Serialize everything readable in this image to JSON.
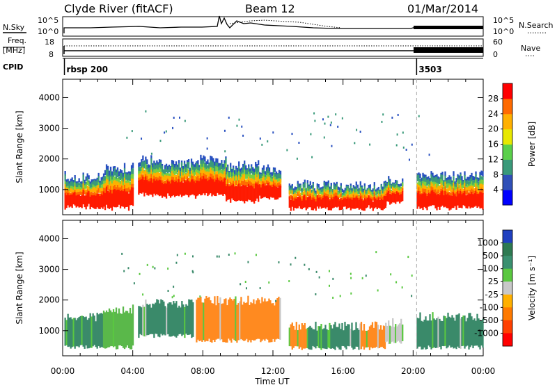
{
  "header": {
    "station": "Clyde River (fitACF)",
    "beam": "Beam 12",
    "date": "01/Mar/2014"
  },
  "top_strips": {
    "nsky": {
      "label": "N.Sky",
      "ticks_left": [
        "10^5",
        "10^0"
      ],
      "ticks_right": [
        "10^5",
        "10^0"
      ],
      "right_label": "N.Search",
      "right_dots": "........"
    },
    "freq": {
      "label_line1": "Freq.",
      "label_line2": "[MHz]",
      "ticks_left": [
        "18",
        "8"
      ],
      "ticks_right": [
        "60",
        "0"
      ],
      "right_label": "Nave",
      "right_dots": "...."
    },
    "cpid": {
      "label": "CPID",
      "segments": [
        {
          "start_hour": 0.1,
          "name": "rbsp 200"
        },
        {
          "start_hour": 20.2,
          "name": "3503"
        }
      ]
    }
  },
  "time_axis": {
    "title": "Time UT",
    "ticks": [
      "00:00",
      "04:00",
      "08:00",
      "12:00",
      "16:00",
      "20:00",
      "00:00"
    ]
  },
  "chart_data": [
    {
      "type": "heatmap",
      "name": "power",
      "xlabel": "",
      "ylabel": "Slant Range [km]",
      "x_range_hours": [
        0,
        24
      ],
      "ylim": [
        180,
        4600
      ],
      "yticks": [
        "1000",
        "2000",
        "3000",
        "4000"
      ],
      "colorbar_label": "Power [dB]",
      "colorbar_ticks": [
        "4",
        "8",
        "12",
        "16",
        "20",
        "24",
        "28"
      ],
      "colorbar_colors": [
        "#0000ff",
        "#3050b8",
        "#3a9a7a",
        "#5ad04a",
        "#e8e800",
        "#ffb000",
        "#ff6a00",
        "#ff0000"
      ],
      "segments": [
        {
          "t0": 0.1,
          "t1": 2.3,
          "r0": 500,
          "r1": 1430
        },
        {
          "t0": 2.3,
          "t1": 4.0,
          "r0": 480,
          "r1": 1700
        },
        {
          "t0": 4.3,
          "t1": 5.4,
          "r0": 900,
          "r1": 1950
        },
        {
          "t0": 5.4,
          "t1": 7.6,
          "r0": 860,
          "r1": 1850
        },
        {
          "t0": 7.6,
          "t1": 9.3,
          "r0": 900,
          "r1": 1980
        },
        {
          "t0": 9.3,
          "t1": 11.2,
          "r0": 700,
          "r1": 1780
        },
        {
          "t0": 11.2,
          "t1": 12.4,
          "r0": 800,
          "r1": 1700
        },
        {
          "t0": 12.9,
          "t1": 18.4,
          "r0": 460,
          "r1": 1150
        },
        {
          "t0": 18.4,
          "t1": 19.4,
          "r0": 650,
          "r1": 1250
        },
        {
          "t0": 20.2,
          "t1": 24.0,
          "r0": 480,
          "r1": 1450
        }
      ]
    },
    {
      "type": "heatmap",
      "name": "velocity",
      "xlabel": "Time UT",
      "ylabel": "Slant Range [km]",
      "x_range_hours": [
        0,
        24
      ],
      "ylim": [
        180,
        4600
      ],
      "yticks": [
        "1000",
        "2000",
        "3000",
        "4000"
      ],
      "colorbar_label": "Velocity [m s⁻¹]",
      "colorbar_ticks": [
        "1000",
        "500",
        "100",
        "25",
        "-25",
        "-100",
        "-500",
        "-1000"
      ],
      "colorbar_colors": [
        "#2040c0",
        "#2e7a52",
        "#3a9070",
        "#5ac840",
        "#c8c8c8",
        "#ffb000",
        "#ff7a00",
        "#ff4000",
        "#ff0000"
      ],
      "segments": [
        {
          "t0": 0.1,
          "t1": 2.3,
          "r0": 500,
          "r1": 1430,
          "v": "#3a8a6a"
        },
        {
          "t0": 2.3,
          "t1": 4.0,
          "r0": 480,
          "r1": 1700,
          "v": "#5ab84a"
        },
        {
          "t0": 4.3,
          "t1": 7.4,
          "r0": 860,
          "r1": 1900,
          "v": "#3a8a6a"
        },
        {
          "t0": 7.6,
          "t1": 12.4,
          "r0": 700,
          "r1": 1980,
          "v": "#ff8a20"
        },
        {
          "t0": 12.9,
          "t1": 14.0,
          "r0": 460,
          "r1": 1150,
          "v": "#ff8a20"
        },
        {
          "t0": 14.0,
          "t1": 17.0,
          "r0": 460,
          "r1": 1150,
          "v": "#3a8a6a"
        },
        {
          "t0": 17.0,
          "t1": 18.4,
          "r0": 460,
          "r1": 1150,
          "v": "#ff8a20"
        },
        {
          "t0": 18.4,
          "t1": 19.4,
          "r0": 650,
          "r1": 1250,
          "v": "#c8c8c8"
        },
        {
          "t0": 20.2,
          "t1": 24.0,
          "r0": 480,
          "r1": 1450,
          "v": "#3a8a6a"
        }
      ]
    }
  ]
}
